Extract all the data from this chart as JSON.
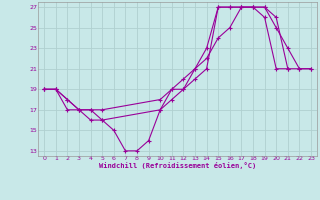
{
  "xlabel": "Windchill (Refroidissement éolien,°C)",
  "xlim": [
    -0.5,
    23.5
  ],
  "ylim": [
    12.5,
    27.5
  ],
  "xticks": [
    0,
    1,
    2,
    3,
    4,
    5,
    6,
    7,
    8,
    9,
    10,
    11,
    12,
    13,
    14,
    15,
    16,
    17,
    18,
    19,
    20,
    21,
    22,
    23
  ],
  "yticks": [
    13,
    15,
    17,
    19,
    21,
    23,
    25,
    27
  ],
  "bg_color": "#c8e8e8",
  "line_color": "#990099",
  "grid_color": "#b0d0d0",
  "line1_x": [
    0,
    1,
    2,
    3,
    4,
    5,
    6,
    7,
    8,
    9,
    10,
    11,
    12,
    13,
    14,
    15,
    16,
    17,
    18,
    19,
    20,
    21
  ],
  "line1_y": [
    19,
    19,
    17,
    17,
    16,
    16,
    15,
    13,
    13,
    14,
    17,
    19,
    20,
    21,
    22,
    24,
    25,
    27,
    27,
    26,
    21,
    21
  ],
  "line2_x": [
    0,
    1,
    2,
    3,
    4,
    5,
    10,
    11,
    12,
    13,
    14,
    15,
    16,
    17,
    18,
    19,
    20,
    21,
    22,
    23
  ],
  "line2_y": [
    19,
    19,
    18,
    17,
    17,
    17,
    18,
    19,
    19,
    20,
    21,
    27,
    27,
    27,
    27,
    27,
    26,
    21,
    21,
    21
  ],
  "line3_x": [
    0,
    1,
    2,
    3,
    4,
    5,
    10,
    11,
    12,
    13,
    14,
    15,
    16,
    17,
    18,
    19,
    20,
    21,
    22,
    23
  ],
  "line3_y": [
    19,
    19,
    18,
    17,
    17,
    16,
    17,
    18,
    19,
    21,
    23,
    27,
    27,
    27,
    27,
    27,
    25,
    23,
    21,
    21
  ]
}
